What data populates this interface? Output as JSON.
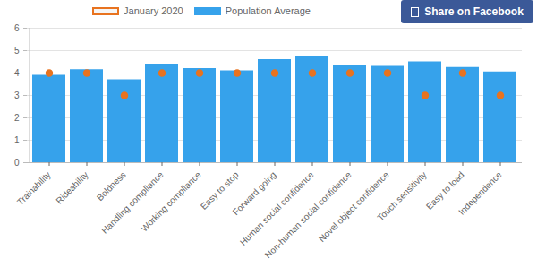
{
  "chart_data": {
    "type": "bar",
    "categories": [
      "Trainability",
      "Rideability",
      "Boldness",
      "Handling compliance",
      "Working compliance",
      "Easy to stop",
      "Forward going",
      "Human social confidence",
      "Non-human social confidence",
      "Novel object confidence",
      "Touch sensitivity",
      "Easy to load",
      "Independence"
    ],
    "series": [
      {
        "name": "January 2020",
        "type": "scatter",
        "color": "#e8731f",
        "marker": "circle",
        "values": [
          4,
          4,
          3,
          4,
          4,
          4,
          4,
          4,
          4,
          4,
          3,
          4,
          3
        ]
      },
      {
        "name": "Population Average",
        "type": "bar",
        "color": "#36a2eb",
        "values": [
          3.9,
          4.15,
          3.7,
          4.4,
          4.2,
          4.1,
          4.6,
          4.75,
          4.35,
          4.3,
          4.5,
          4.25,
          4.05
        ]
      }
    ],
    "ylim": [
      0,
      6
    ],
    "yticks": [
      0,
      1,
      2,
      3,
      4,
      5,
      6
    ],
    "grid": true,
    "legend": "top"
  },
  "page": {
    "share_button": "Share on Facebook"
  }
}
